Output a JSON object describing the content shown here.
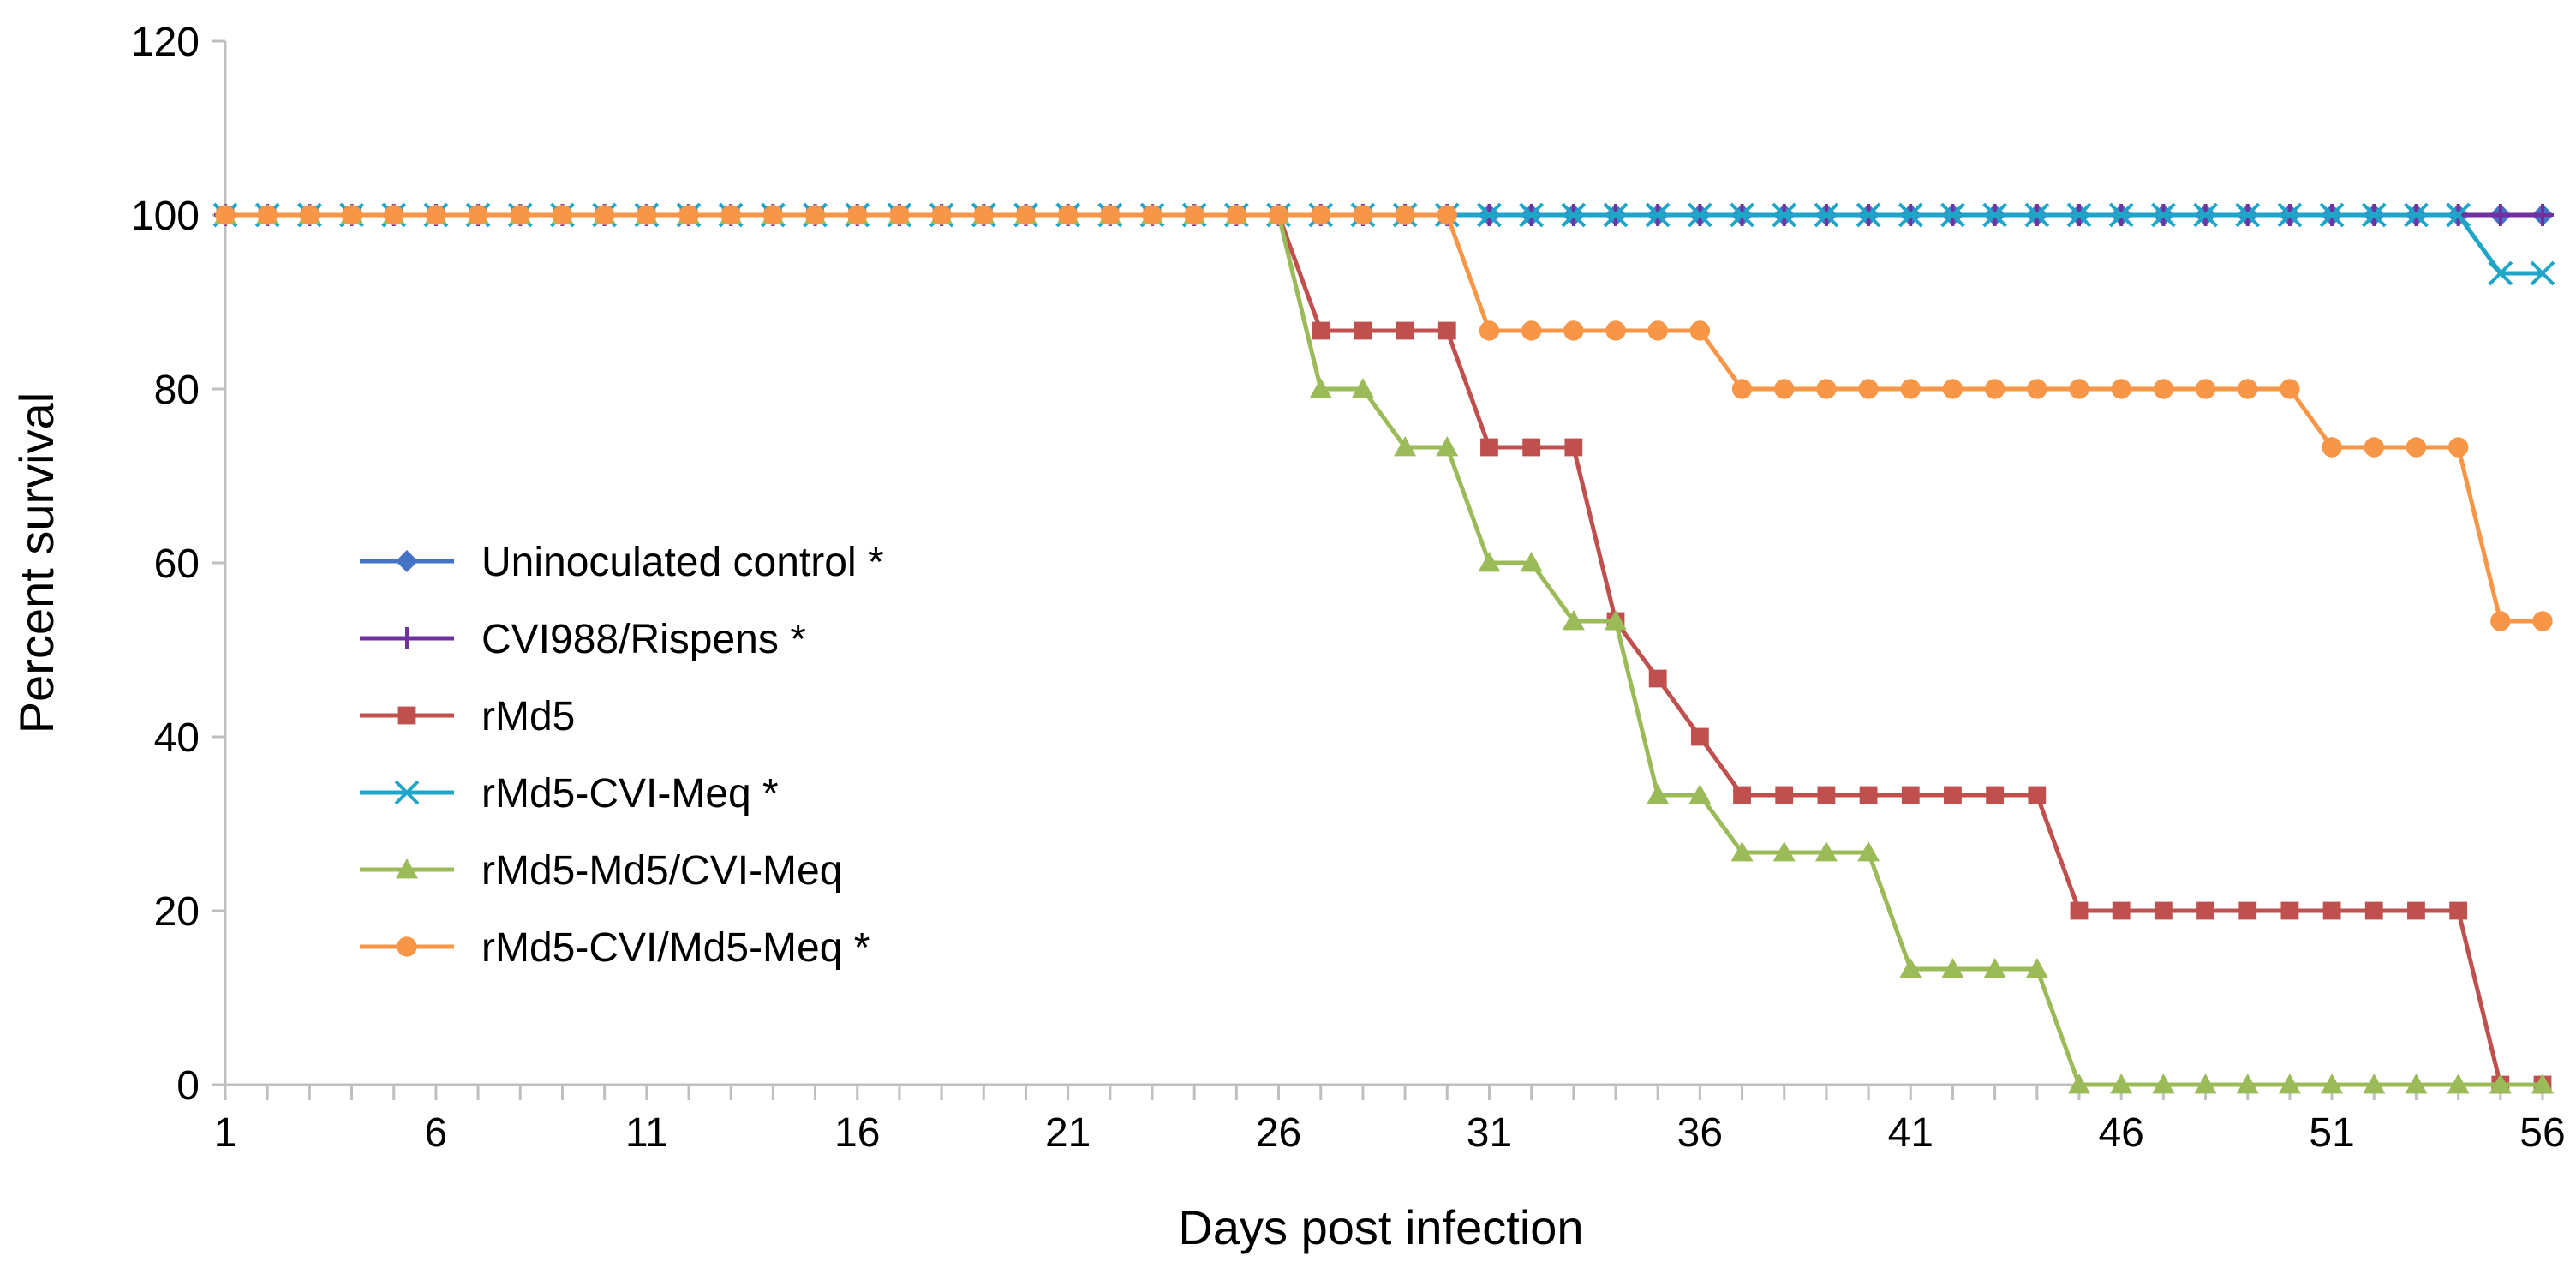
{
  "chart_data": {
    "type": "line",
    "title": "",
    "xlabel": "Days post infection",
    "ylabel": "Percent survival",
    "xlim": [
      1,
      56
    ],
    "ylim": [
      0,
      120
    ],
    "x_tick_labels": [
      "1",
      "6",
      "11",
      "16",
      "21",
      "26",
      "31",
      "36",
      "41",
      "46",
      "51",
      "56"
    ],
    "y_tick_labels": [
      "0",
      "20",
      "40",
      "60",
      "80",
      "100",
      "120"
    ],
    "legend_position": "lower-left",
    "grid": false,
    "series": [
      {
        "name": "Uninoculated control *",
        "color": "#4472C4",
        "marker": "diamond",
        "x_range": [
          1,
          56
        ],
        "values": [
          100,
          100,
          100,
          100,
          100,
          100,
          100,
          100,
          100,
          100,
          100,
          100,
          100,
          100,
          100,
          100,
          100,
          100,
          100,
          100,
          100,
          100,
          100,
          100,
          100,
          100,
          100,
          100,
          100,
          100,
          100,
          100,
          100,
          100,
          100,
          100,
          100,
          100,
          100,
          100,
          100,
          100,
          100,
          100,
          100,
          100,
          100,
          100,
          100,
          100,
          100,
          100,
          100,
          100,
          100,
          100
        ]
      },
      {
        "name": "CVI988/Rispens *",
        "color": "#7030A0",
        "marker": "plus",
        "x_range": [
          1,
          56
        ],
        "values": [
          100,
          100,
          100,
          100,
          100,
          100,
          100,
          100,
          100,
          100,
          100,
          100,
          100,
          100,
          100,
          100,
          100,
          100,
          100,
          100,
          100,
          100,
          100,
          100,
          100,
          100,
          100,
          100,
          100,
          100,
          100,
          100,
          100,
          100,
          100,
          100,
          100,
          100,
          100,
          100,
          100,
          100,
          100,
          100,
          100,
          100,
          100,
          100,
          100,
          100,
          100,
          100,
          100,
          100,
          100,
          100
        ]
      },
      {
        "name": "rMd5",
        "color": "#C0504D",
        "marker": "square",
        "x_range": [
          1,
          56
        ],
        "values": [
          100,
          100,
          100,
          100,
          100,
          100,
          100,
          100,
          100,
          100,
          100,
          100,
          100,
          100,
          100,
          100,
          100,
          100,
          100,
          100,
          100,
          100,
          100,
          100,
          100,
          100,
          86.7,
          86.7,
          86.7,
          86.7,
          73.3,
          73.3,
          73.3,
          53.3,
          46.7,
          40,
          33.3,
          33.3,
          33.3,
          33.3,
          33.3,
          33.3,
          33.3,
          33.3,
          20,
          20,
          20,
          20,
          20,
          20,
          20,
          20,
          20,
          20,
          0,
          0
        ]
      },
      {
        "name": "rMd5-CVI-Meq *",
        "color": "#1FA5C7",
        "marker": "x",
        "x_range": [
          1,
          56
        ],
        "values": [
          100,
          100,
          100,
          100,
          100,
          100,
          100,
          100,
          100,
          100,
          100,
          100,
          100,
          100,
          100,
          100,
          100,
          100,
          100,
          100,
          100,
          100,
          100,
          100,
          100,
          100,
          100,
          100,
          100,
          100,
          100,
          100,
          100,
          100,
          100,
          100,
          100,
          100,
          100,
          100,
          100,
          100,
          100,
          100,
          100,
          100,
          100,
          100,
          100,
          100,
          100,
          100,
          100,
          100,
          93.3,
          93.3
        ]
      },
      {
        "name": "rMd5-Md5/CVI-Meq",
        "color": "#9BBB59",
        "marker": "triangle",
        "x_range": [
          1,
          56
        ],
        "values": [
          100,
          100,
          100,
          100,
          100,
          100,
          100,
          100,
          100,
          100,
          100,
          100,
          100,
          100,
          100,
          100,
          100,
          100,
          100,
          100,
          100,
          100,
          100,
          100,
          100,
          100,
          80,
          80,
          73.3,
          73.3,
          60,
          60,
          53.3,
          53.3,
          33.3,
          33.3,
          26.7,
          26.7,
          26.7,
          26.7,
          13.3,
          13.3,
          13.3,
          13.3,
          0,
          0,
          0,
          0,
          0,
          0,
          0,
          0,
          0,
          0,
          0,
          0
        ]
      },
      {
        "name": "rMd5-CVI/Md5-Meq *",
        "color": "#F79646",
        "marker": "circle",
        "x_range": [
          1,
          56
        ],
        "values": [
          100,
          100,
          100,
          100,
          100,
          100,
          100,
          100,
          100,
          100,
          100,
          100,
          100,
          100,
          100,
          100,
          100,
          100,
          100,
          100,
          100,
          100,
          100,
          100,
          100,
          100,
          100,
          100,
          100,
          100,
          86.7,
          86.7,
          86.7,
          86.7,
          86.7,
          86.7,
          80,
          80,
          80,
          80,
          80,
          80,
          80,
          80,
          80,
          80,
          80,
          80,
          80,
          80,
          73.3,
          73.3,
          73.3,
          73.3,
          53.3,
          53.3
        ]
      }
    ]
  }
}
